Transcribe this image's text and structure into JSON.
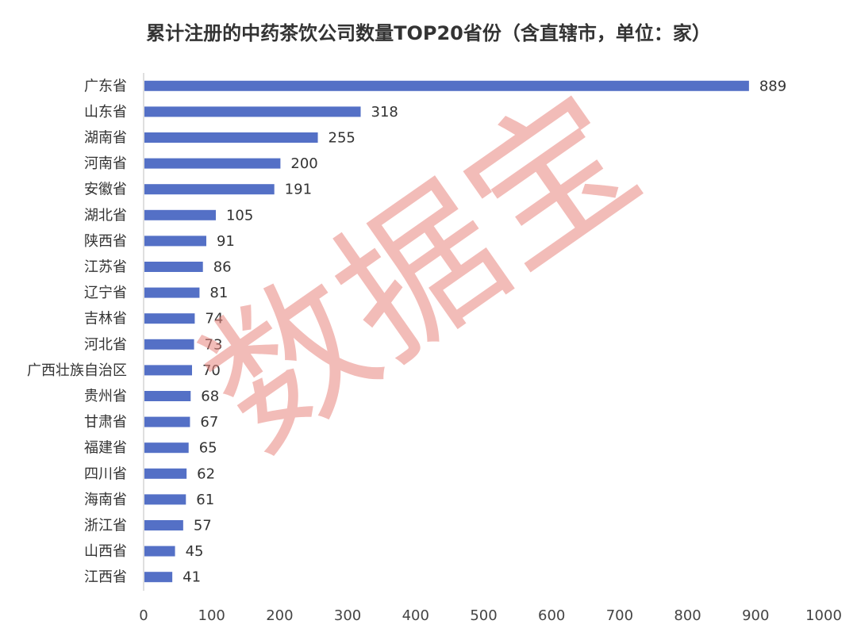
{
  "chart_data": {
    "type": "bar",
    "orientation": "horizontal",
    "title": "累计注册的中药茶饮公司数量TOP20省份（含直辖市，单位：家）",
    "categories": [
      "广东省",
      "山东省",
      "湖南省",
      "河南省",
      "安徽省",
      "湖北省",
      "陕西省",
      "江苏省",
      "辽宁省",
      "吉林省",
      "河北省",
      "广西壮族自治区",
      "贵州省",
      "甘肃省",
      "福建省",
      "四川省",
      "海南省",
      "浙江省",
      "山西省",
      "江西省"
    ],
    "values": [
      889,
      318,
      255,
      200,
      191,
      105,
      91,
      86,
      81,
      74,
      73,
      70,
      68,
      67,
      65,
      62,
      61,
      57,
      45,
      41
    ],
    "xlim": [
      0,
      1000
    ],
    "xticks": [
      0,
      100,
      200,
      300,
      400,
      500,
      600,
      700,
      800,
      900,
      1000
    ],
    "bar_color": "#5470c6",
    "data_labels": true,
    "grid": false,
    "legend": "none"
  },
  "watermark": {
    "text": "数据宝",
    "color": "#e9867f"
  }
}
